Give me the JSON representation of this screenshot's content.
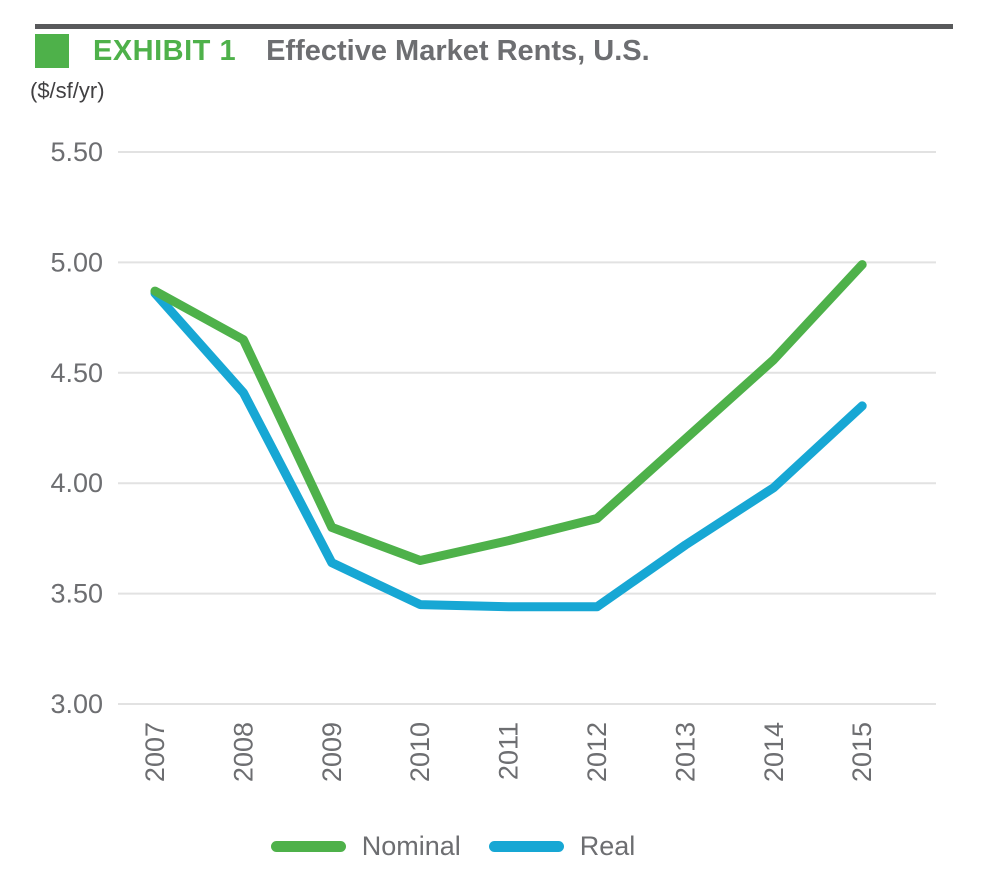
{
  "header": {
    "exhibit_label": "EXHIBIT 1",
    "title": "Effective Market Rents, U.S.",
    "units": "($/sf/yr)"
  },
  "chart_data": {
    "type": "line",
    "title": "Effective Market Rents, U.S.",
    "ylabel": "($/sf/yr)",
    "x": [
      "2007",
      "2008",
      "2009",
      "2010",
      "2011",
      "2012",
      "2013",
      "2014",
      "2015"
    ],
    "series": [
      {
        "name": "Nominal",
        "color": "#4EB14A",
        "values": [
          4.87,
          4.65,
          3.8,
          3.65,
          3.74,
          3.84,
          4.2,
          4.56,
          4.99
        ]
      },
      {
        "name": "Real",
        "color": "#17A7D4",
        "values": [
          4.86,
          4.41,
          3.64,
          3.45,
          3.44,
          3.44,
          3.72,
          3.98,
          4.35
        ]
      }
    ],
    "ylim": [
      3.0,
      5.5
    ],
    "yticks": [
      5.5,
      5.0,
      4.5,
      4.0,
      3.5,
      3.0
    ],
    "grid": "horizontal",
    "legend_position": "bottom"
  },
  "style": {
    "green": "#4EB14A",
    "blue": "#17A7D4",
    "bar_gray": "#58595B",
    "title_gray": "#6D6E71",
    "tick_gray": "#6D6E71",
    "units_gray": "#414042",
    "grid_gray": "#E2E2E2"
  }
}
